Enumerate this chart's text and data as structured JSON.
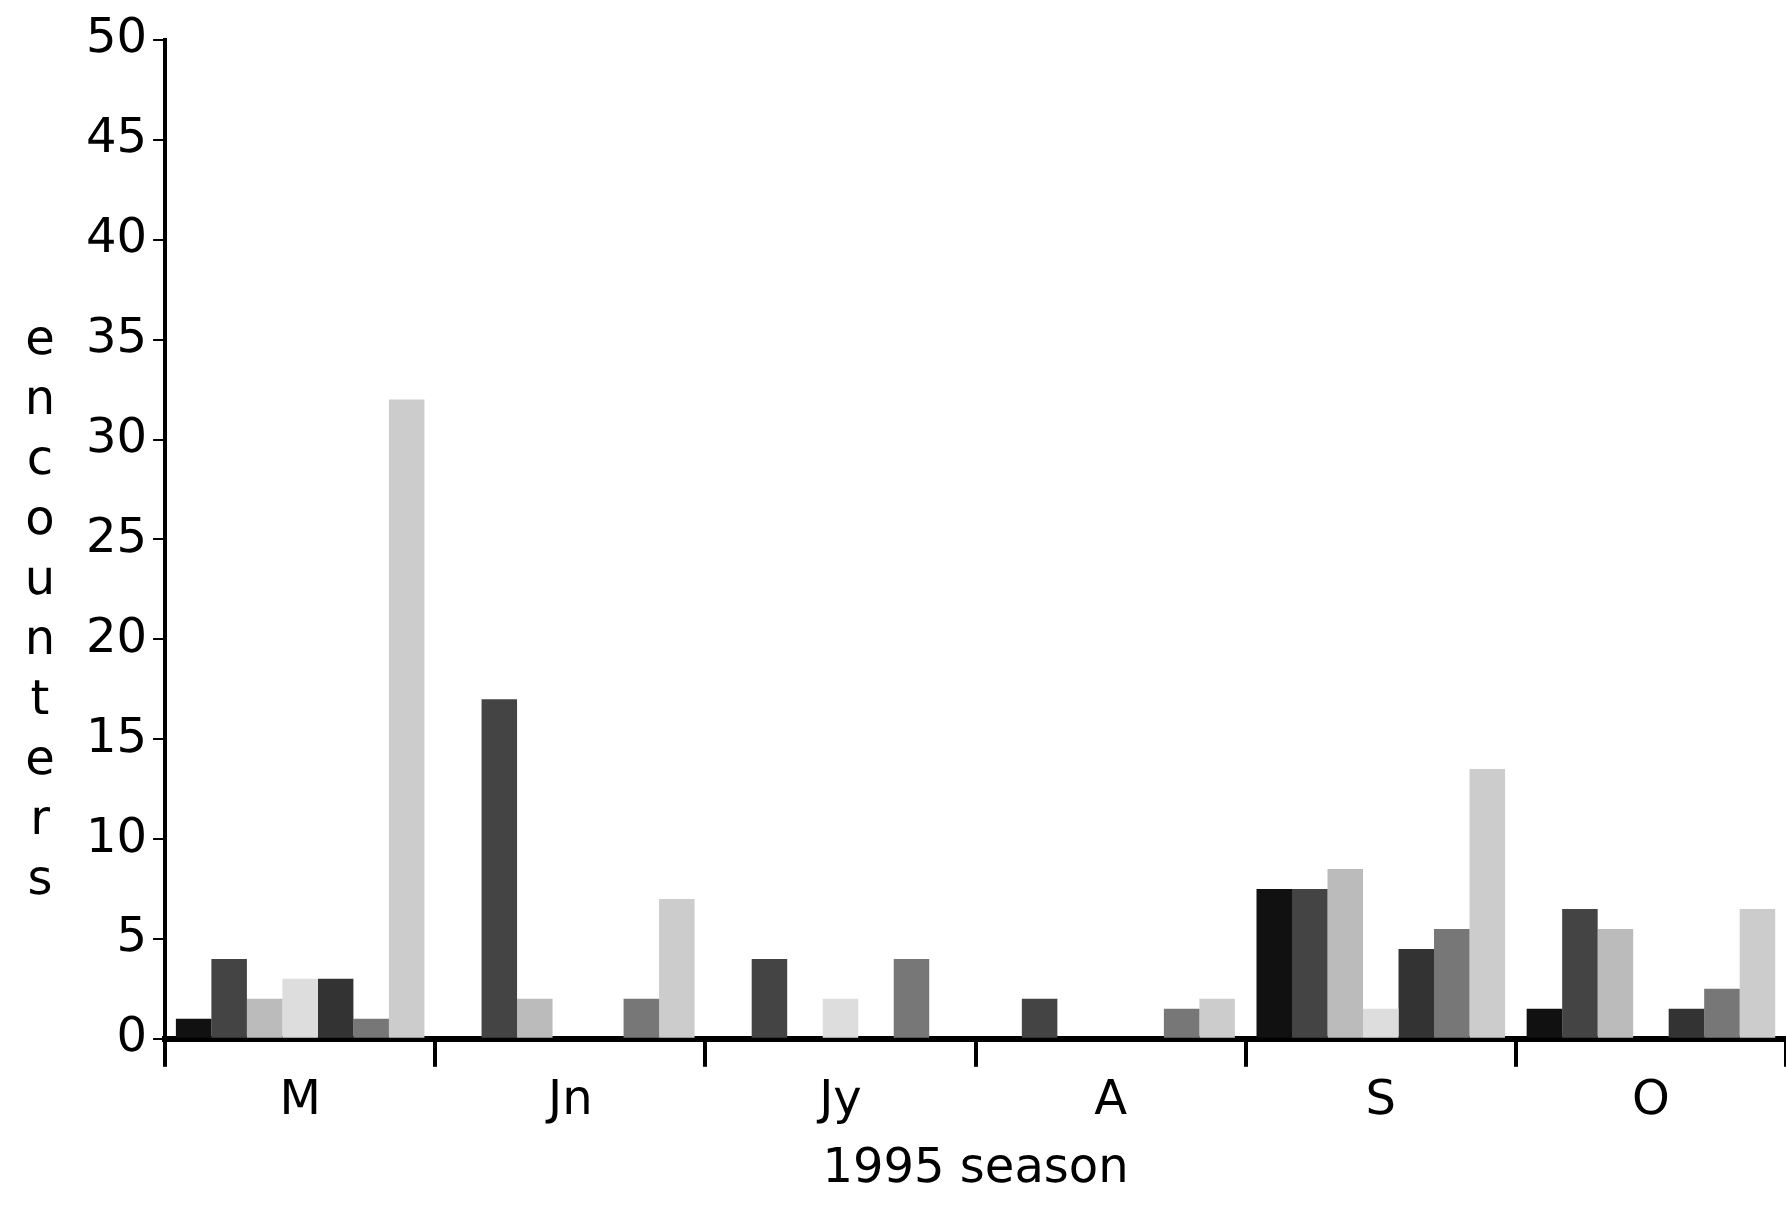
{
  "chart_data": {
    "type": "bar",
    "xlabel": "1995 season",
    "ylabel": "encounters",
    "categories": [
      "M",
      "Jn",
      "Jy",
      "A",
      "S",
      "O"
    ],
    "series": [
      {
        "color": "#111111",
        "values": [
          1,
          0,
          0,
          0,
          7.5,
          1.5
        ]
      },
      {
        "color": "#444444",
        "values": [
          4,
          17,
          4,
          2,
          7.5,
          6.5
        ]
      },
      {
        "color": "#bbbbbb",
        "values": [
          2,
          2,
          0,
          0,
          8.5,
          5.5
        ]
      },
      {
        "color": "#dddddd",
        "values": [
          3,
          0,
          2,
          0,
          1.5,
          0
        ]
      },
      {
        "color": "#333333",
        "values": [
          3,
          0,
          0,
          0,
          4.5,
          1.5
        ]
      },
      {
        "color": "#777777",
        "values": [
          1,
          2,
          4,
          1.5,
          5.5,
          2.5
        ]
      },
      {
        "color": "#cccccc",
        "values": [
          32,
          7,
          0,
          2,
          13.5,
          6.5
        ]
      }
    ],
    "ylim": [
      0,
      50
    ],
    "yticks": [
      0,
      5,
      10,
      15,
      20,
      25,
      30,
      35,
      40,
      45,
      50
    ],
    "grid": false,
    "legend": false
  }
}
